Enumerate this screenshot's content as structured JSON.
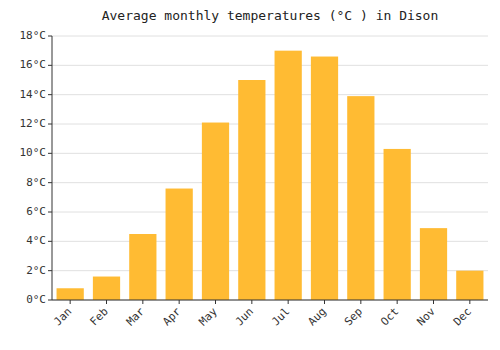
{
  "chart_data": {
    "type": "bar",
    "title": "Average monthly temperatures (°C ) in Dison",
    "categories": [
      "Jan",
      "Feb",
      "Mar",
      "Apr",
      "May",
      "Jun",
      "Jul",
      "Aug",
      "Sep",
      "Oct",
      "Nov",
      "Dec"
    ],
    "values": [
      0.8,
      1.6,
      4.5,
      7.6,
      12.1,
      15.0,
      17.0,
      16.6,
      13.9,
      10.3,
      4.9,
      2.0
    ],
    "color": "#FFBB33",
    "ylim": [
      0,
      18
    ],
    "yticks": [
      {
        "value": 0,
        "label": "0°C"
      },
      {
        "value": 2,
        "label": "2°C"
      },
      {
        "value": 4,
        "label": "4°C"
      },
      {
        "value": 6,
        "label": "6°C"
      },
      {
        "value": 8,
        "label": "8°C"
      },
      {
        "value": 10,
        "label": "10°C"
      },
      {
        "value": 12,
        "label": "12°C"
      },
      {
        "value": 14,
        "label": "14°C"
      },
      {
        "value": 16,
        "label": "16°C"
      },
      {
        "value": 18,
        "label": "18°C"
      }
    ],
    "grid": true
  }
}
